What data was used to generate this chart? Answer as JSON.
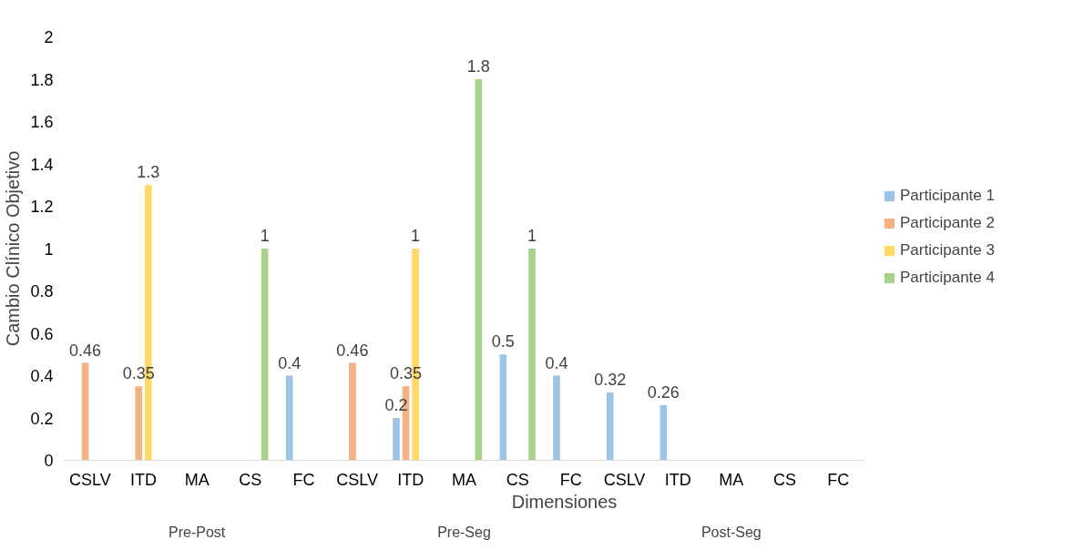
{
  "chart_data": {
    "type": "bar",
    "xlabel": "Dimensiones",
    "ylabel": "Cambio Clínico Objetivo",
    "categories": [
      "CSLV",
      "ITD",
      "MA",
      "CS",
      "FC",
      "CSLV",
      "ITD",
      "MA",
      "CS",
      "FC",
      "CSLV",
      "ITD",
      "MA",
      "CS",
      "FC"
    ],
    "annotations": [
      "Pre-Post",
      "Pre-Seg",
      "Post-Seg"
    ],
    "series": [
      {
        "name": "Participante 1",
        "color": "#9dc3e6",
        "values": [
          null,
          null,
          null,
          null,
          0.4,
          null,
          0.2,
          null,
          0.5,
          0.4,
          0.32,
          0.26,
          null,
          null,
          null
        ]
      },
      {
        "name": "Participante 2",
        "color": "#f4b183",
        "values": [
          0.46,
          0.35,
          null,
          null,
          null,
          0.46,
          0.35,
          null,
          null,
          null,
          null,
          null,
          null,
          null,
          null
        ]
      },
      {
        "name": "Participante 3",
        "color": "#ffd966",
        "values": [
          null,
          1.3,
          null,
          null,
          null,
          null,
          1,
          null,
          null,
          null,
          null,
          null,
          null,
          null,
          null
        ]
      },
      {
        "name": "Participante 4",
        "color": "#a9d18e",
        "values": [
          null,
          null,
          null,
          1,
          null,
          null,
          null,
          1.8,
          1,
          null,
          null,
          null,
          null,
          null,
          null
        ]
      }
    ],
    "ylim": [
      0,
      2
    ],
    "yticks": [
      0,
      0.2,
      0.4,
      0.6,
      0.8,
      1,
      1.2,
      1.4,
      1.6,
      1.8,
      2
    ],
    "data_labels": true,
    "grid": false,
    "legend": "right"
  }
}
